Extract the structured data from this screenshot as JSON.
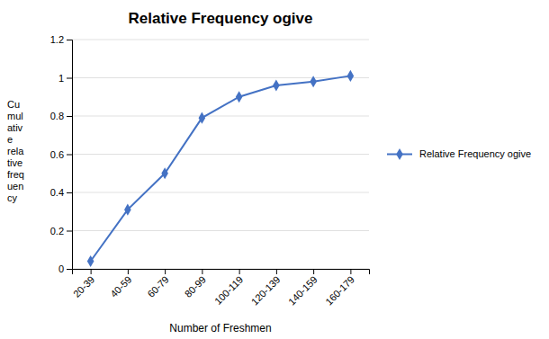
{
  "chart_data": {
    "type": "line",
    "title": "Relative Frequency ogive",
    "x_label": "Number of Freshmen",
    "y_label": "Cu\nmul\nativ\ne\nrela\ntive\nfreq\nuen\ncy",
    "categories": [
      "20-39",
      "40-59",
      "60-79",
      "80-99",
      "100-119",
      "120-139",
      "140-159",
      "160-179"
    ],
    "series": [
      {
        "name": "Relative Frequency ogive",
        "color": "#4472C4",
        "marker": "diamond",
        "values": [
          0.04,
          0.31,
          0.5,
          0.79,
          0.9,
          0.96,
          0.98,
          1.01
        ]
      }
    ],
    "ylim": [
      0,
      1.2
    ],
    "yticks": [
      0,
      0.2,
      0.4,
      0.6,
      0.8,
      1,
      1.2
    ],
    "grid": true,
    "legend": "right"
  }
}
